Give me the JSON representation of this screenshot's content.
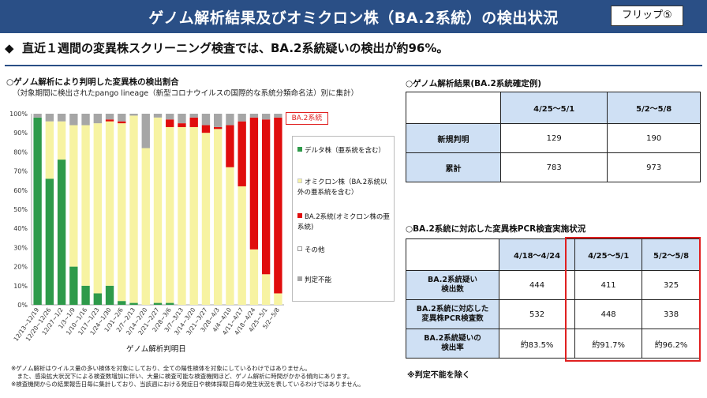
{
  "header": {
    "title": "ゲノム解析結果及びオミクロン株（BA.2系統）の検出状況",
    "flip_label": "フリップ⑤"
  },
  "headline": {
    "bullet": "◆",
    "text": "直近１週間の変異株スクリーニング検査では、BA.2系統疑いの検出が約96%。"
  },
  "chart_section": {
    "title": "○ゲノム解析により判明した変異株の検出割合",
    "subtitle": "（対象期間に検出されたpango lineage（新型コロナウイルスの国際的な系統分類命名法）別に集計）",
    "callout": "BA.2系統",
    "xlabel": "ゲノム解析判明日"
  },
  "chart_data": {
    "type": "bar",
    "stacked": true,
    "xlabel": "ゲノム解析判明日",
    "ylabel": "",
    "ylim": [
      0,
      100
    ],
    "y_ticks": [
      "0%",
      "10%",
      "20%",
      "30%",
      "40%",
      "50%",
      "60%",
      "70%",
      "80%",
      "90%",
      "100%"
    ],
    "categories": [
      "12/13~12/19",
      "12/20~12/26",
      "12/27~1/2",
      "1/3~1/9",
      "1/10~1/16",
      "1/17~1/23",
      "1/24~1/30",
      "1/31~2/6",
      "2/7~2/13",
      "2/14~2/20",
      "2/21~2/27",
      "2/28~3/6",
      "3/7~3/13",
      "3/14~3/20",
      "3/21~3/27",
      "3/28~4/3",
      "4/4~4/10",
      "4/11~4/17",
      "4/18~4/24",
      "4/25~5/1",
      "5/2~5/8"
    ],
    "series": [
      {
        "name": "デルタ株（亜系統を含む）",
        "color": "#2e9a4a",
        "values": [
          98,
          66,
          76,
          20,
          10,
          6,
          10,
          2,
          1,
          0,
          1,
          1,
          0,
          0,
          0,
          0,
          0,
          0,
          0,
          0,
          0
        ]
      },
      {
        "name": "オミクロン株（BA.2系統以外の亜系統を含む）",
        "color": "#f7f3a2",
        "values": [
          0,
          30,
          20,
          74,
          84,
          89,
          86,
          93,
          98,
          82,
          97,
          92,
          93,
          93,
          90,
          92,
          72,
          62,
          29,
          16,
          6
        ]
      },
      {
        "name": "BA.2系統（オミクロン株の亜系統）",
        "color": "#e00d0d",
        "values": [
          0,
          0,
          0,
          0,
          0,
          0,
          1,
          1,
          0,
          0,
          0,
          4,
          2,
          5,
          4,
          1,
          22,
          34,
          69,
          81,
          92
        ]
      },
      {
        "name": "その他",
        "color": "#ffffff",
        "values": [
          0,
          0,
          0,
          0,
          0,
          0,
          0,
          0,
          0,
          0,
          0,
          0,
          0,
          0,
          0,
          0,
          0,
          0,
          0,
          0,
          0
        ]
      },
      {
        "name": "判定不能",
        "color": "#a6a6a6",
        "values": [
          2,
          4,
          4,
          6,
          6,
          5,
          3,
          4,
          1,
          18,
          2,
          3,
          5,
          2,
          6,
          7,
          6,
          4,
          2,
          3,
          2
        ]
      }
    ],
    "legend_position": "right",
    "grid": false
  },
  "legend": [
    {
      "color": "#2e9a4a",
      "label": "デルタ株（亜系統を含む）"
    },
    {
      "color": "#f7f3a2",
      "label": "オミクロン株（BA.2系統以外の亜系統を含む）"
    },
    {
      "color": "#e00d0d",
      "label": "BA.2系統(オミクロン株の亜系統)"
    },
    {
      "color": "#ffffff",
      "label": "その他"
    },
    {
      "color": "#a6a6a6",
      "label": "判定不能"
    }
  ],
  "table1": {
    "title": "○ゲノム解析結果(BA.2系統確定例)",
    "headers": [
      "",
      "4/25～5/1",
      "5/2～5/8"
    ],
    "rows": [
      {
        "label": "新規判明",
        "values": [
          "129",
          "190"
        ]
      },
      {
        "label": "累計",
        "values": [
          "783",
          "973"
        ]
      }
    ]
  },
  "table2": {
    "title": "○BA.2系統に対応した変異株PCR検査実施状況",
    "headers": [
      "",
      "4/18～4/24",
      "4/25～5/1",
      "5/2～5/8"
    ],
    "rows": [
      {
        "label_line1": "BA.2系統疑い",
        "label_line2": "検出数",
        "values": [
          "444",
          "411",
          "325"
        ]
      },
      {
        "label_line1": "BA.2系統に対応した",
        "label_line2": "変異株PCR検査数",
        "values": [
          "532",
          "448",
          "338"
        ]
      },
      {
        "label_line1": "BA.2系統疑いの",
        "label_line2": "検出率",
        "values": [
          "約83.5%",
          "約91.7%",
          "約96.2%"
        ]
      }
    ],
    "note": "※判定不能を除く"
  },
  "footnotes": [
    "※ゲノム解析はウイルス量の多い検体を対象にしており、全ての陽性検体を対象にしているわけではありません。",
    "　また、感染拡大状況下による検査数増加に伴い、大量に検査可能な検査機関ほど、ゲノム解析に時間がかかる傾向にあります。",
    "※検査機関からの結果報告日毎に集計しており、当該週における発症日や検体採取日毎の発生状況を表しているわけではありません。"
  ]
}
